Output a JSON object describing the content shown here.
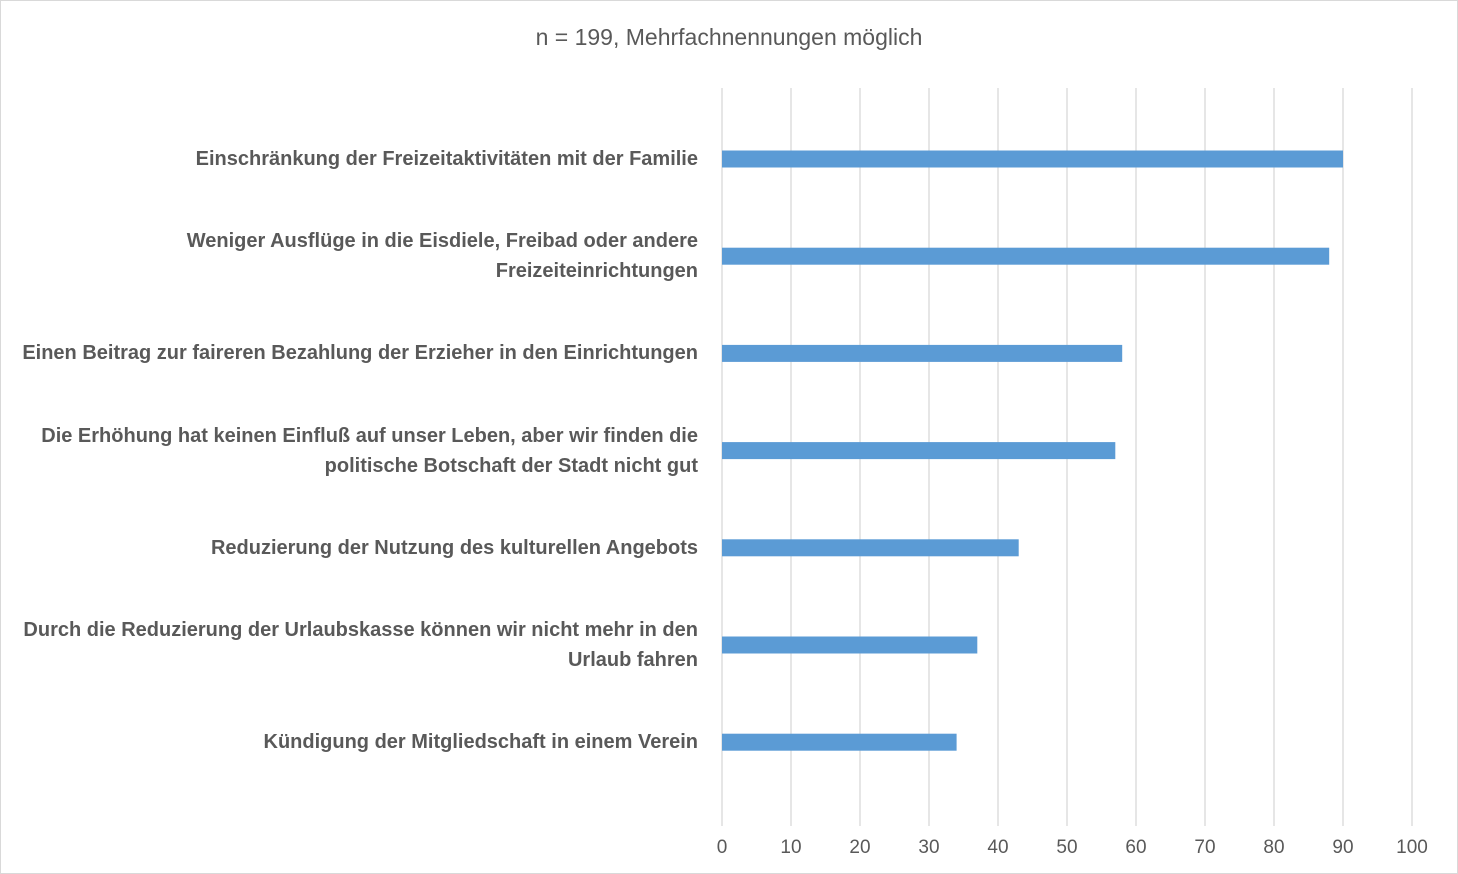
{
  "chart_data": {
    "type": "bar",
    "orientation": "horizontal",
    "title": "n = 199, Mehrfachnennungen  möglich",
    "categories": [
      "Einschränkung  der Freizeitaktivitäten mit der Familie",
      "Weniger Ausflüge in die Eisdiele, Freibad oder andere Freizeiteinrichtungen",
      "Einen Beitrag zur faireren Bezahlung der Erzieher in den Einrichtungen",
      "Die Erhöhung  hat keinen Einfluß auf unser Leben, aber wir finden die politische Botschaft der Stadt nicht gut",
      "Reduzierung der Nutzung des kulturellen Angebots",
      "Durch die Reduzierung der Urlaubskasse können wir nicht mehr in den Urlaub fahren",
      "Kündigung der Mitgliedschaft in einem Verein"
    ],
    "values": [
      90,
      88,
      58,
      57,
      43,
      37,
      34
    ],
    "xlim": [
      0,
      100
    ],
    "xticks": [
      "0",
      "10",
      "20",
      "30",
      "40",
      "50",
      "60",
      "70",
      "80",
      "90",
      "100"
    ],
    "grid": true,
    "bar_color": "#5b9bd5",
    "grid_color": "#d9d9d9"
  }
}
